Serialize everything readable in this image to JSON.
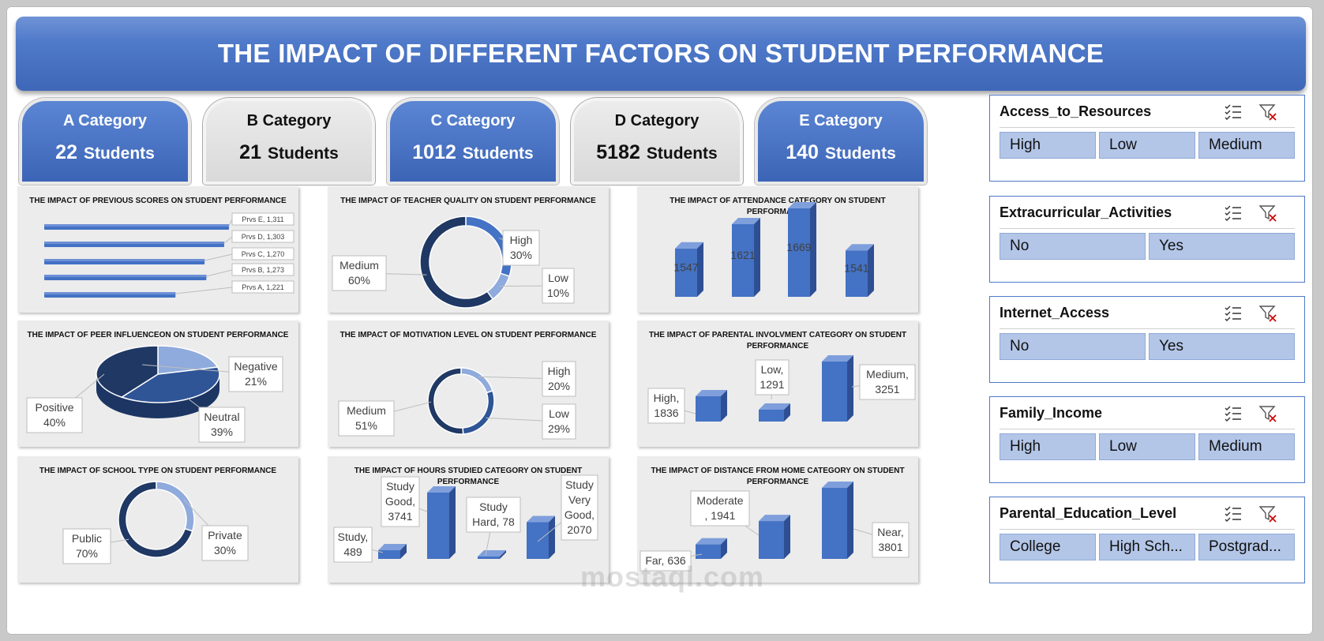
{
  "title": "THE IMPACT OF DIFFERENT FACTORS ON STUDENT PERFORMANCE",
  "categories": [
    {
      "label": "A Category",
      "count": "22",
      "unit": "Students",
      "style": "blue"
    },
    {
      "label": "B Category",
      "count": "21",
      "unit": "Students",
      "style": "grey"
    },
    {
      "label": "C Category",
      "count": "1012",
      "unit": "Students",
      "style": "blue"
    },
    {
      "label": "D Category",
      "count": "5182",
      "unit": "Students",
      "style": "grey"
    },
    {
      "label": "E Category",
      "count": "140",
      "unit": "Students",
      "style": "blue"
    }
  ],
  "slicers": [
    {
      "name": "Access_to_Resources",
      "options": [
        "High",
        "Low",
        "Medium"
      ]
    },
    {
      "name": "Extracurricular_Activities",
      "options": [
        "No",
        "Yes"
      ]
    },
    {
      "name": "Internet_Access",
      "options": [
        "No",
        "Yes"
      ]
    },
    {
      "name": "Family_Income",
      "options": [
        "High",
        "Low",
        "Medium"
      ]
    },
    {
      "name": "Parental_Education_Level",
      "options": [
        "College",
        "High Sch...",
        "Postgrad..."
      ]
    }
  ],
  "watermark": "mostaql.com",
  "colors": {
    "banner": "#4a72c4",
    "dark": "#1f3864",
    "mid": "#2f5597",
    "bar": "#4472c4",
    "light": "#8faadc",
    "slicer_button": "#b3c6e8"
  },
  "chart_data": [
    {
      "id": "previous",
      "type": "bar",
      "orientation": "horizontal",
      "title": "THE IMPACT OF PREVIOUS SCORES ON STUDENT PERFORMANCE",
      "categories": [
        "Prvs E",
        "Prvs D",
        "Prvs C",
        "Prvs B",
        "Prvs A"
      ],
      "values": [
        1311,
        1303,
        1270,
        1273,
        1221
      ],
      "labels": [
        "Prvs E, 1,311",
        "Prvs D, 1,303",
        "Prvs C, 1,270",
        "Prvs B, 1,273",
        "Prvs A, 1,221"
      ]
    },
    {
      "id": "teacher",
      "type": "pie",
      "donut": true,
      "title": "THE IMPACT OF TEACHER QUALITY ON STUDENT PERFORMANCE",
      "slices": [
        {
          "name": "High",
          "value": 30,
          "label": "30%"
        },
        {
          "name": "Low",
          "value": 10,
          "label": "10%"
        },
        {
          "name": "Medium",
          "value": 60,
          "label": "60%"
        }
      ]
    },
    {
      "id": "attendance",
      "type": "bar",
      "title": "THE IMPACT OF ATTENDANCE CATEGORY ON STUDENT PERFORMANCE",
      "categories": [
        "",
        "",
        "",
        ""
      ],
      "values": [
        1547,
        1621,
        1669,
        1541
      ],
      "labels": [
        "1547",
        "1621",
        "1669",
        "1541"
      ]
    },
    {
      "id": "peer",
      "type": "pie",
      "title": "THE IMPACT OF PEER INFLUENCEON ON STUDENT PERFORMANCE",
      "slices": [
        {
          "name": "Negative",
          "value": 21,
          "label": "21%"
        },
        {
          "name": "Neutral",
          "value": 39,
          "label": "39%"
        },
        {
          "name": "Positive",
          "value": 40,
          "label": "40%"
        }
      ]
    },
    {
      "id": "motivation",
      "type": "pie",
      "donut": true,
      "title": "THE IMPACT OF MOTIVATION LEVEL ON STUDENT PERFORMANCE",
      "slices": [
        {
          "name": "High",
          "value": 20,
          "label": "20%"
        },
        {
          "name": "Low",
          "value": 29,
          "label": "29%"
        },
        {
          "name": "Medium",
          "value": 51,
          "label": "51%"
        }
      ]
    },
    {
      "id": "parental",
      "type": "bar",
      "title": "THE IMPACT OF PARENTAL INVOLVMENT CATEGORY ON STUDENT PERFORMANCE",
      "categories": [
        "High",
        "Low",
        "Medium"
      ],
      "values": [
        1836,
        1291,
        3251
      ],
      "labels": [
        "High,\n1836",
        "Low,\n1291",
        "Medium,\n3251"
      ]
    },
    {
      "id": "school",
      "type": "pie",
      "donut": true,
      "title": "THE IMPACT OF SCHOOL TYPE ON STUDENT PERFORMANCE",
      "slices": [
        {
          "name": "Private",
          "value": 30,
          "label": "30%"
        },
        {
          "name": "Public",
          "value": 70,
          "label": "70%"
        }
      ]
    },
    {
      "id": "hours",
      "type": "bar",
      "title": "THE IMPACT OF HOURS STUDIED CATEGORY ON STUDENT PERFORMANCE",
      "categories": [
        "Study",
        "Study Good",
        "Study Hard",
        "Study Very Good"
      ],
      "values": [
        489,
        3741,
        78,
        2070
      ],
      "labels": [
        "Study,\n489",
        "Study\nGood,\n3741",
        "Study\nHard, 78",
        "Study\nVery\nGood,\n2070"
      ]
    },
    {
      "id": "distance",
      "type": "bar",
      "title": "THE IMPACT OF DISTANCE FROM HOME CATEGORY ON STUDENT PERFORMANCE",
      "categories": [
        "Far",
        "Moderate",
        "Near"
      ],
      "values": [
        636,
        1941,
        3801
      ],
      "labels": [
        "Far, 636",
        "Moderate\n, 1941",
        "Near,\n3801"
      ]
    }
  ]
}
